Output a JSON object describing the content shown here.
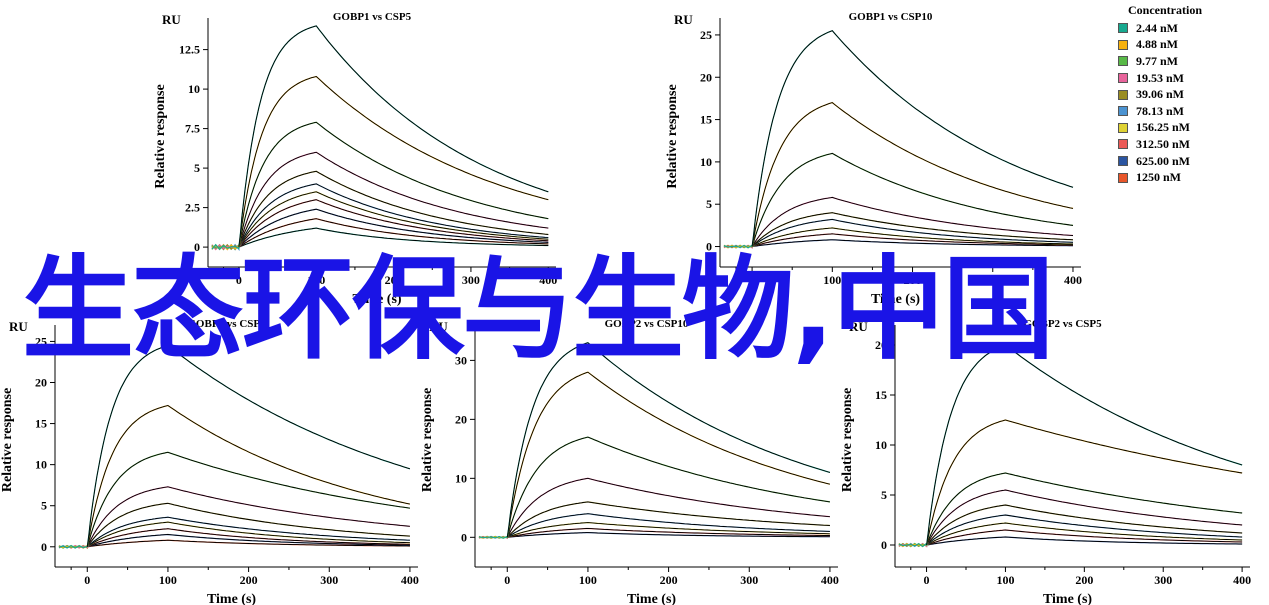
{
  "overlay_text": "生态环保与生物,中国",
  "legend": {
    "title": "Concentration",
    "items": [
      {
        "label": "2.44 nM",
        "color": "#17a98f"
      },
      {
        "label": "4.88 nM",
        "color": "#f7b20f"
      },
      {
        "label": "9.77 nM",
        "color": "#58b947"
      },
      {
        "label": "19.53 nM",
        "color": "#e8649b"
      },
      {
        "label": "39.06 nM",
        "color": "#9a8d22"
      },
      {
        "label": "78.13 nM",
        "color": "#4b93d1"
      },
      {
        "label": "156.25 nM",
        "color": "#dfd234"
      },
      {
        "label": "312.50 nM",
        "color": "#eb5a57"
      },
      {
        "label": "625.00 nM",
        "color": "#2b55a1"
      },
      {
        "label": "1250 nM",
        "color": "#e8562a"
      }
    ]
  },
  "chart_data": [
    {
      "type": "line",
      "title": "GOBP1 vs CSP5",
      "unit_label": "RU",
      "xlabel": "Time (s)",
      "ylabel": "Relative response",
      "xlim": [
        -40,
        410
      ],
      "ylim": [
        -0.5,
        14.5
      ],
      "x_ticks": [
        "0",
        "100",
        "200",
        "300",
        "400"
      ],
      "y_ticks": [
        "0",
        "2.5",
        "5",
        "7.5",
        "10",
        "12.5"
      ],
      "association_end": 100,
      "equilibrium_levels": [
        1.2,
        1.8,
        2.4,
        3.0,
        3.5,
        4.0,
        4.8,
        6.0,
        7.9,
        10.8,
        14.0
      ],
      "dissociation_end_levels": [
        0.1,
        0.2,
        0.3,
        0.4,
        0.5,
        0.6,
        0.8,
        1.2,
        1.8,
        3.0,
        3.5
      ]
    },
    {
      "type": "line",
      "title": "GOBP1 vs CSP10",
      "unit_label": "RU",
      "xlabel": "Time (s)",
      "ylabel": "Relative response",
      "xlim": [
        -40,
        410
      ],
      "ylim": [
        -1,
        27
      ],
      "x_ticks": [
        "0",
        "100",
        "200",
        "300",
        "400"
      ],
      "y_ticks": [
        "0",
        "5",
        "10",
        "15",
        "20",
        "25"
      ],
      "association_end": 100,
      "equilibrium_levels": [
        0.8,
        1.5,
        2.2,
        3.2,
        4.0,
        5.8,
        11.0,
        17.0,
        25.5
      ],
      "dissociation_end_levels": [
        0.1,
        0.2,
        0.3,
        0.5,
        0.8,
        1.3,
        2.5,
        4.5,
        7.0
      ]
    },
    {
      "type": "line",
      "title": "GOBP1 vs CSP5",
      "unit_label": "RU",
      "xlabel": "Time (s)",
      "ylabel": "Relative response",
      "xlim": [
        -40,
        410
      ],
      "ylim": [
        -1,
        27
      ],
      "x_ticks": [
        "0",
        "100",
        "200",
        "300",
        "400"
      ],
      "y_ticks": [
        "0",
        "5",
        "10",
        "15",
        "20",
        "25"
      ],
      "association_end": 100,
      "equilibrium_levels": [
        0.8,
        1.5,
        2.2,
        3.0,
        3.6,
        5.3,
        7.3,
        11.5,
        17.2,
        24.5
      ],
      "dissociation_end_levels": [
        0.1,
        0.2,
        0.3,
        0.5,
        0.8,
        1.3,
        2.5,
        4.7,
        5.2,
        9.5
      ]
    },
    {
      "type": "line",
      "title": "GOBP2 vs CSP10",
      "unit_label": "RU",
      "xlabel": "Time (s)",
      "ylabel": "Relative response",
      "xlim": [
        -40,
        410
      ],
      "ylim": [
        -3,
        36
      ],
      "x_ticks": [
        "0",
        "100",
        "200",
        "300",
        "400"
      ],
      "y_ticks": [
        "0",
        "10",
        "20",
        "30"
      ],
      "association_end": 100,
      "equilibrium_levels": [
        0.8,
        1.5,
        2.5,
        4.0,
        6.0,
        10.0,
        17.0,
        28.0,
        33.0
      ],
      "dissociation_end_levels": [
        0.1,
        0.3,
        0.6,
        1.0,
        2.0,
        3.5,
        6.0,
        9.0,
        11.0
      ]
    },
    {
      "type": "line",
      "title": "GOBP2 vs CSP5",
      "unit_label": "RU",
      "xlabel": "Time (s)",
      "ylabel": "Relative response",
      "xlim": [
        -40,
        410
      ],
      "ylim": [
        -1,
        22
      ],
      "x_ticks": [
        "0",
        "100",
        "200",
        "300",
        "400"
      ],
      "y_ticks": [
        "0",
        "5",
        "10",
        "15",
        "20"
      ],
      "association_end": 100,
      "equilibrium_levels": [
        0.8,
        1.5,
        2.2,
        3.0,
        4.0,
        5.5,
        7.2,
        12.5,
        20.0
      ],
      "dissociation_end_levels": [
        0.1,
        0.3,
        0.5,
        0.8,
        1.2,
        2.0,
        3.2,
        7.2,
        8.0
      ]
    }
  ]
}
